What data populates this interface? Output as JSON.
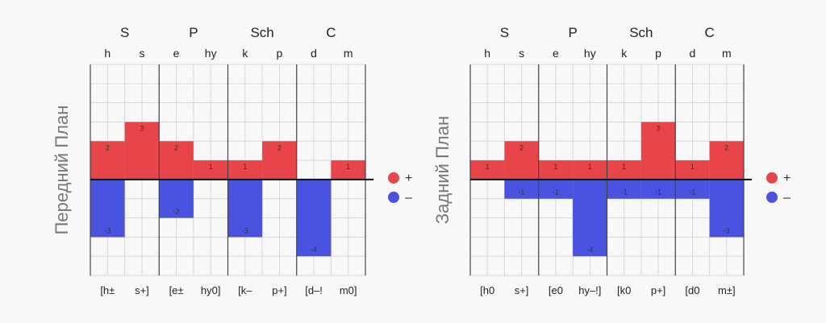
{
  "chart_data": [
    {
      "type": "bar",
      "ylabel": "Передний План",
      "groups": [
        "S",
        "P",
        "Sch",
        "C"
      ],
      "categories": [
        "h",
        "s",
        "e",
        "hy",
        "k",
        "p",
        "d",
        "m"
      ],
      "bottom_labels": [
        "[h±",
        "s+]",
        "[e±",
        "hy0]",
        "[k–",
        "p+]",
        "[d–!",
        "m0]"
      ],
      "series": [
        {
          "name": "+",
          "values": [
            2,
            3,
            2,
            1,
            1,
            2,
            0,
            1
          ]
        },
        {
          "name": "–",
          "values": [
            -3,
            0,
            -2,
            0,
            -3,
            0,
            -4,
            0
          ]
        }
      ],
      "ylim": [
        -5,
        6
      ],
      "grid": true,
      "legend_position": "right"
    },
    {
      "type": "bar",
      "ylabel": "Задний План",
      "groups": [
        "S",
        "P",
        "Sch",
        "C"
      ],
      "categories": [
        "h",
        "s",
        "e",
        "hy",
        "k",
        "p",
        "d",
        "m"
      ],
      "bottom_labels": [
        "[h0",
        "s+]",
        "[e0",
        "hy–!]",
        "[k0",
        "p+]",
        "[d0",
        "m±]"
      ],
      "series": [
        {
          "name": "+",
          "values": [
            1,
            2,
            1,
            1,
            1,
            3,
            1,
            2
          ]
        },
        {
          "name": "–",
          "values": [
            0,
            -1,
            -1,
            -4,
            -1,
            -1,
            -1,
            -3
          ]
        }
      ],
      "ylim": [
        -5,
        6
      ],
      "grid": true,
      "legend_position": "right"
    }
  ],
  "colors": {
    "positive": "#e8454b",
    "negative": "#4a52e0",
    "grid": "#d7d7d7",
    "axis": "#111111"
  }
}
